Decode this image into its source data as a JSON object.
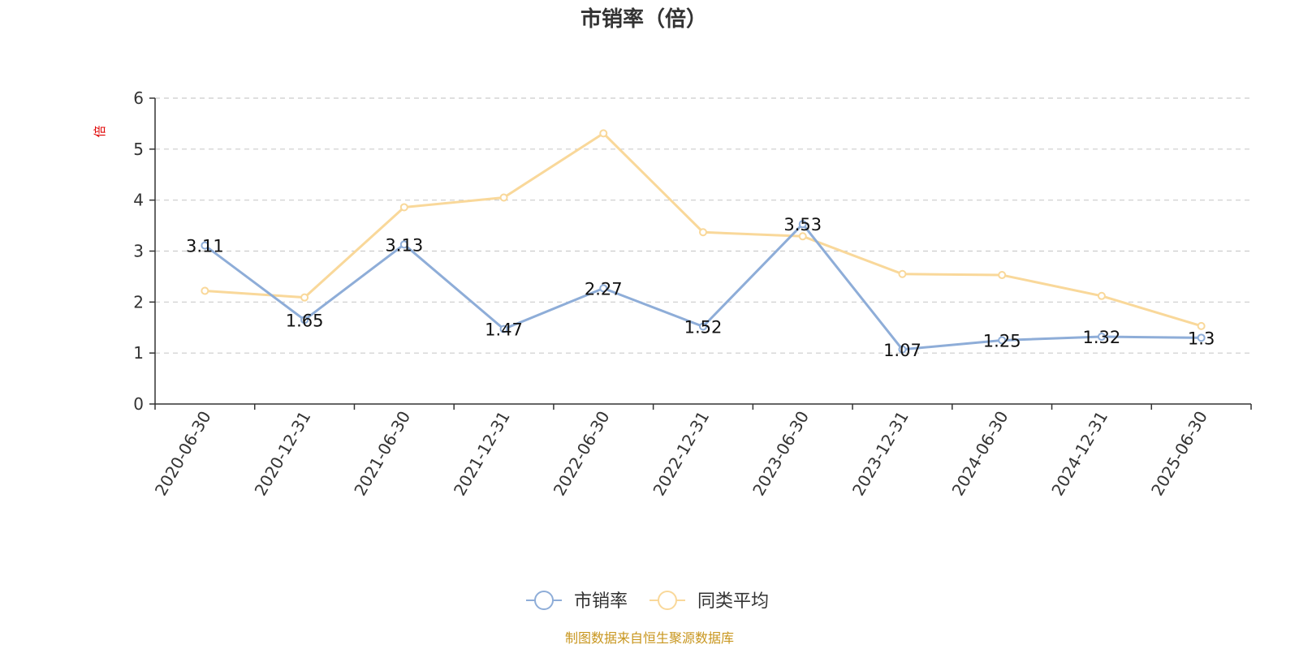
{
  "colors": {
    "series_1": "#8eadd8",
    "series_2": "#f9d89a",
    "axis": "#333333",
    "grid": "#cccccc",
    "unit": "#e00000",
    "source": "#c8961e"
  },
  "source_note": "制图数据来自恒生聚源数据库",
  "chart_data": {
    "type": "line",
    "title": "市销率（倍）",
    "ylabel": "倍",
    "xlabel": "",
    "ylim": [
      0,
      6
    ],
    "yticks": [
      "0",
      "1",
      "2",
      "3",
      "4",
      "5",
      "6"
    ],
    "grid": true,
    "legend_position": "bottom-center",
    "categories": [
      "2020-06-30",
      "2020-12-31",
      "2021-06-30",
      "2021-12-31",
      "2022-06-30",
      "2022-12-31",
      "2023-06-30",
      "2023-12-31",
      "2024-06-30",
      "2024-12-31",
      "2025-06-30"
    ],
    "series": [
      {
        "name": "市销率",
        "values": [
          3.11,
          1.65,
          3.13,
          1.47,
          2.27,
          1.52,
          3.53,
          1.07,
          1.25,
          1.32,
          1.3
        ],
        "labels": [
          "3.11",
          "1.65",
          "3.13",
          "1.47",
          "2.27",
          "1.52",
          "3.53",
          "1.07",
          "1.25",
          "1.32",
          "1.3"
        ]
      },
      {
        "name": "同类平均",
        "values": [
          2.22,
          2.09,
          3.86,
          4.05,
          5.31,
          3.37,
          3.29,
          2.55,
          2.53,
          2.12,
          1.53
        ]
      }
    ]
  }
}
